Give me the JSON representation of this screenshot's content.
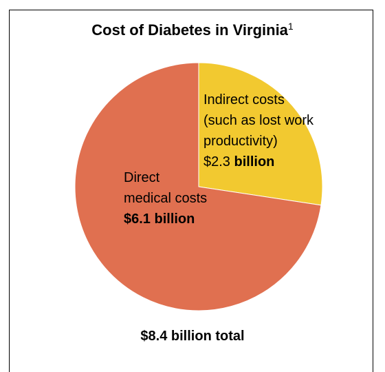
{
  "chart_data": {
    "type": "pie",
    "title": "Cost of Diabetes in Virginia",
    "title_footnote": "1",
    "total_label": "$8.4 billion total",
    "colors": {
      "direct": "#e07050",
      "indirect": "#f2c930"
    },
    "slices": [
      {
        "label_lines": [
          "Indirect costs",
          "(such as lost work",
          "productivity)"
        ],
        "value_prefix": "$2.3",
        "value_suffix": "billion",
        "value": 2.3,
        "color": "#f2c930"
      },
      {
        "label_lines": [
          "Direct",
          "medical costs"
        ],
        "value_text": "$6.1 billion",
        "value": 6.1,
        "color": "#e07050"
      }
    ]
  }
}
